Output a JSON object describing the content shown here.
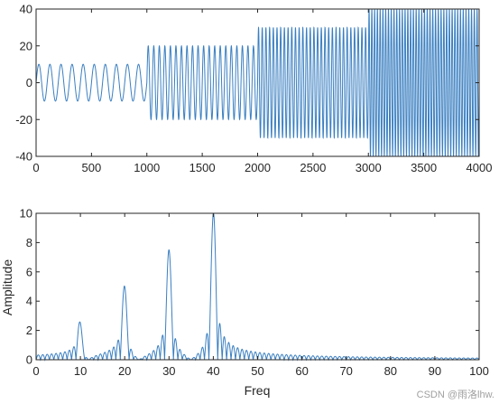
{
  "chart_data": [
    {
      "type": "line",
      "title": "",
      "xlabel": "",
      "ylabel": "",
      "xlim": [
        0,
        4000
      ],
      "ylim": [
        -40,
        40
      ],
      "xticks": [
        "0",
        "500",
        "1000",
        "1500",
        "2000",
        "2500",
        "3000",
        "3500",
        "4000"
      ],
      "yticks": [
        "-40",
        "-20",
        "0",
        "20",
        "40"
      ],
      "grid": false,
      "line_color": "#3a7fc1",
      "series": [
        {
          "segments": [
            {
              "x_start": 0,
              "x_end": 1000,
              "amplitude": 10,
              "frequency": 10
            },
            {
              "x_start": 1000,
              "x_end": 2000,
              "amplitude": 20,
              "frequency": 20
            },
            {
              "x_start": 2000,
              "x_end": 3000,
              "amplitude": 30,
              "frequency": 30
            },
            {
              "x_start": 3000,
              "x_end": 4000,
              "amplitude": 40,
              "frequency": 40
            }
          ]
        }
      ]
    },
    {
      "type": "line",
      "title": "",
      "xlabel": "Freq",
      "ylabel": "Amplitude",
      "xlim": [
        0,
        100
      ],
      "ylim": [
        0,
        10
      ],
      "xticks": [
        "0",
        "10",
        "20",
        "30",
        "40",
        "50",
        "60",
        "70",
        "80",
        "90",
        "100"
      ],
      "yticks": [
        "0",
        "2",
        "4",
        "6",
        "8",
        "10"
      ],
      "grid": false,
      "line_color": "#3a7fc1",
      "series": [
        {
          "peaks": [
            {
              "freq": 10,
              "amplitude": 2.5
            },
            {
              "freq": 20,
              "amplitude": 5.0
            },
            {
              "freq": 30,
              "amplitude": 7.5
            },
            {
              "freq": 40,
              "amplitude": 10.0
            }
          ]
        }
      ]
    }
  ],
  "watermark": "CSDN @雨洛lhw."
}
